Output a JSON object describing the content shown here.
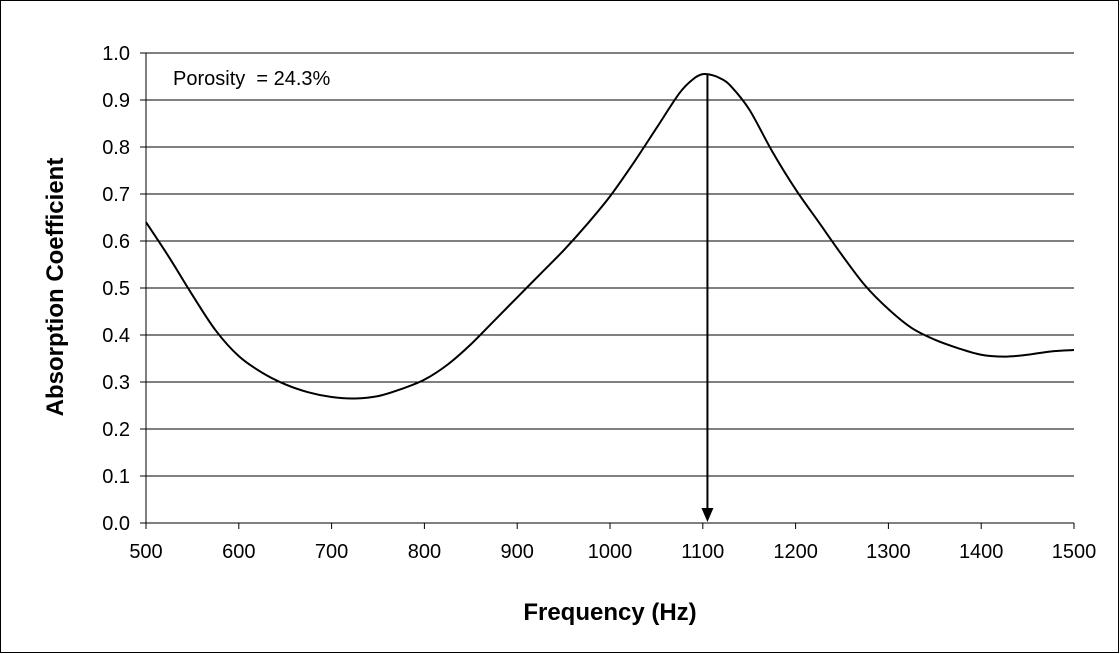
{
  "chart_data": {
    "type": "line",
    "xlabel": "Frequency (Hz)",
    "ylabel": "Absorption Coefficient",
    "xlim": [
      500,
      1500
    ],
    "ylim": [
      0,
      1
    ],
    "x_ticks": [
      "500",
      "600",
      "700",
      "800",
      "900",
      "1000",
      "1100",
      "1200",
      "1300",
      "1400",
      "1500"
    ],
    "y_ticks": [
      "0.0",
      "0.1",
      "0.2",
      "0.3",
      "0.4",
      "0.5",
      "0.6",
      "0.7",
      "0.8",
      "0.9",
      "1.0"
    ],
    "grid": "horizontal",
    "annotation": "Porosity  = 24.3%",
    "arrow": {
      "x": 1105,
      "y_from": 0.955,
      "y_to": 0.0
    },
    "series": [
      {
        "color": "#000000",
        "x": [
          500,
          525,
          550,
          575,
          600,
          625,
          650,
          675,
          700,
          725,
          750,
          775,
          800,
          825,
          850,
          875,
          900,
          925,
          950,
          975,
          1000,
          1025,
          1050,
          1075,
          1090,
          1100,
          1110,
          1120,
          1130,
          1150,
          1175,
          1200,
          1225,
          1250,
          1275,
          1300,
          1325,
          1350,
          1375,
          1400,
          1425,
          1450,
          1475,
          1500
        ],
        "y": [
          0.64,
          0.565,
          0.485,
          0.41,
          0.355,
          0.32,
          0.295,
          0.278,
          0.268,
          0.265,
          0.27,
          0.285,
          0.305,
          0.337,
          0.38,
          0.43,
          0.48,
          0.53,
          0.58,
          0.635,
          0.695,
          0.765,
          0.84,
          0.915,
          0.945,
          0.955,
          0.953,
          0.945,
          0.93,
          0.88,
          0.79,
          0.71,
          0.64,
          0.57,
          0.505,
          0.455,
          0.415,
          0.39,
          0.372,
          0.358,
          0.354,
          0.358,
          0.365,
          0.368
        ]
      }
    ]
  }
}
